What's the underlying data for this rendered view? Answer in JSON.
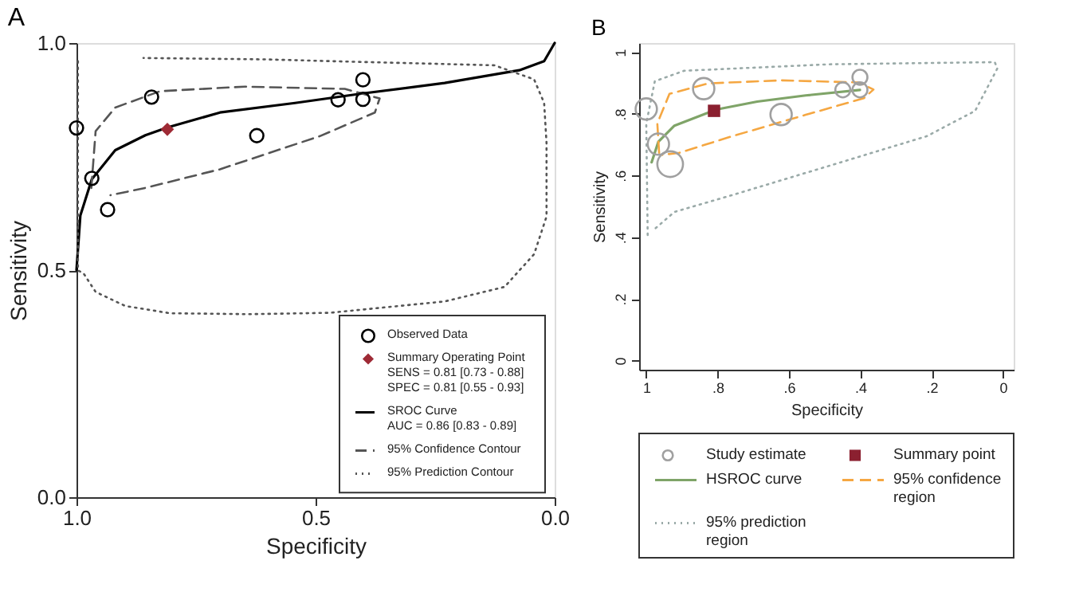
{
  "chart_data": [
    {
      "type": "scatter",
      "title": "A",
      "xlabel": "Specificity",
      "ylabel": "Sensitivity",
      "xlim": [
        1.0,
        0.0
      ],
      "ylim": [
        0.0,
        1.0
      ],
      "xticks": [
        {
          "value": 1.0,
          "label": "1.0"
        },
        {
          "value": 0.5,
          "label": "0.5"
        },
        {
          "value": 0.0,
          "label": "0.0"
        }
      ],
      "yticks": [
        {
          "value": 0.0,
          "label": "0.0"
        },
        {
          "value": 0.5,
          "label": "0.5"
        },
        {
          "value": 1.0,
          "label": "1.0"
        }
      ],
      "grid": false,
      "legend": "bottom right",
      "annotations": [
        "SENS = 0.81 [0.73 - 0.88]",
        "SPEC = 0.81 [0.55 - 0.93]",
        "AUC = 0.86 [0.83 - 0.89]"
      ],
      "series": [
        {
          "name": "Observed Data",
          "type": "scatter",
          "marker": "circle",
          "color": "#000000",
          "x": [
            1.0,
            0.968,
            0.935,
            0.843,
            0.623,
            0.453,
            0.401,
            0.401
          ],
          "values": [
            0.813,
            0.702,
            0.633,
            0.881,
            0.796,
            0.875,
            0.919,
            0.876
          ]
        },
        {
          "name": "Summary Operating Point",
          "type": "scatter",
          "marker": "diamond",
          "color": "#9e2a35",
          "x": [
            0.81
          ],
          "values": [
            0.81
          ]
        },
        {
          "name": "SROC Curve",
          "type": "line",
          "line_style": "solid",
          "color": "#000000",
          "x": [
            1.0,
            0.992,
            0.968,
            0.919,
            0.856,
            0.81,
            0.7,
            0.543,
            0.401,
            0.23,
            0.074,
            0.022,
            0.0
          ],
          "values": [
            0.5,
            0.62,
            0.7,
            0.764,
            0.797,
            0.814,
            0.847,
            0.868,
            0.889,
            0.912,
            0.94,
            0.96,
            1.0
          ]
        },
        {
          "name": "95% Confidence Contour",
          "type": "line",
          "line_style": "dashed",
          "color": "#555555",
          "x": [
            0.969,
            0.96,
            0.919,
            0.825,
            0.648,
            0.439,
            0.366,
            0.376,
            0.491,
            0.7,
            0.856,
            0.929
          ],
          "values": [
            0.681,
            0.806,
            0.858,
            0.894,
            0.904,
            0.899,
            0.878,
            0.847,
            0.795,
            0.722,
            0.681,
            0.665
          ]
        },
        {
          "name": "95% Prediction Contour",
          "type": "line",
          "line_style": "dotted",
          "color": "#555555",
          "x": [
            0.997,
            0.997,
            0.986,
            0.96,
            0.898,
            0.804,
            0.637,
            0.47,
            0.23,
            0.105,
            0.043,
            0.017,
            0.017,
            0.017,
            0.022,
            0.043,
            0.126,
            0.429,
            0.605,
            0.86
          ],
          "values": [
            0.96,
            0.499,
            0.494,
            0.452,
            0.421,
            0.405,
            0.403,
            0.406,
            0.431,
            0.463,
            0.535,
            0.618,
            0.681,
            0.78,
            0.868,
            0.92,
            0.951,
            0.959,
            0.964,
            0.967
          ]
        }
      ]
    },
    {
      "type": "scatter",
      "title": "B",
      "xlabel": "Specificity",
      "ylabel": "Sensitivity",
      "xlim": [
        1.02,
        -0.03
      ],
      "ylim": [
        -0.03,
        1.03
      ],
      "xticks": [
        {
          "value": 1,
          "label": "1"
        },
        {
          "value": 0.8,
          "label": ".8"
        },
        {
          "value": 0.6,
          "label": ".6"
        },
        {
          "value": 0.4,
          "label": ".4"
        },
        {
          "value": 0.2,
          "label": ".2"
        },
        {
          "value": 0,
          "label": "0"
        }
      ],
      "yticks": [
        {
          "value": 0,
          "label": "0"
        },
        {
          "value": 0.2,
          "label": ".2"
        },
        {
          "value": 0.4,
          "label": ".4"
        },
        {
          "value": 0.6,
          "label": ".6"
        },
        {
          "value": 0.8,
          "label": ".8"
        },
        {
          "value": 1,
          "label": "1"
        }
      ],
      "grid": false,
      "legend": "bottom",
      "series": [
        {
          "name": "Study estimate",
          "type": "bubble",
          "marker": "circle",
          "color": "#a0a0a0",
          "x": [
            1.0,
            0.966,
            0.933,
            0.839,
            0.622,
            0.449,
            0.401,
            0.401
          ],
          "values": [
            0.816,
            0.702,
            0.637,
            0.882,
            0.798,
            0.878,
            0.919,
            0.878
          ],
          "sizes": [
            0.69,
            0.69,
            1,
            0.69,
            0.69,
            0.34,
            0.34,
            0.34
          ]
        },
        {
          "name": "Summary point",
          "type": "scatter",
          "marker": "square",
          "color": "#8b2030",
          "x": [
            0.81
          ],
          "values": [
            0.81
          ]
        },
        {
          "name": "HSROC curve",
          "type": "line",
          "line_style": "solid",
          "color": "#7fa468",
          "x": [
            0.985,
            0.966,
            0.921,
            0.804,
            0.689,
            0.553,
            0.401
          ],
          "values": [
            0.643,
            0.71,
            0.762,
            0.814,
            0.84,
            0.86,
            0.878
          ]
        },
        {
          "name": "95% confidence region",
          "type": "line",
          "line_style": "dashed",
          "color": "#f5a742",
          "x": [
            0.964,
            0.969,
            0.935,
            0.826,
            0.622,
            0.404,
            0.363,
            0.39,
            0.553,
            0.758,
            0.907,
            0.955
          ],
          "values": [
            0.674,
            0.769,
            0.865,
            0.899,
            0.909,
            0.902,
            0.879,
            0.851,
            0.797,
            0.728,
            0.674,
            0.667
          ]
        },
        {
          "name": "95% prediction region",
          "type": "line",
          "line_style": "dotted",
          "color": "#9aaaa8",
          "x": [
            0.996,
            1.0,
            0.976,
            0.894,
            0.486,
            0.023,
            0.016,
            0.078,
            0.213,
            0.486,
            0.758,
            0.921,
            0.976
          ],
          "values": [
            0.407,
            0.769,
            0.906,
            0.94,
            0.961,
            0.968,
            0.947,
            0.81,
            0.728,
            0.632,
            0.537,
            0.482,
            0.427
          ]
        }
      ]
    }
  ]
}
